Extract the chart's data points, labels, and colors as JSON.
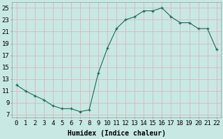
{
  "x": [
    0,
    1,
    2,
    3,
    4,
    5,
    6,
    7,
    8,
    9,
    10,
    11,
    12,
    13,
    14,
    15,
    16,
    17,
    18,
    19,
    20,
    21,
    22
  ],
  "y": [
    12,
    11,
    10.2,
    9.5,
    8.5,
    8.0,
    8.0,
    7.5,
    7.8,
    14.0,
    18.2,
    21.5,
    23.0,
    23.5,
    24.5,
    24.5,
    25.0,
    23.5,
    22.5,
    22.5,
    21.5,
    21.5,
    18.0
  ],
  "line_color": "#1a6b5a",
  "marker": "+",
  "marker_size": 3,
  "marker_color": "#1a6b5a",
  "bg_color": "#c8e8e4",
  "grid_color": "#d8b8b8",
  "xlabel": "Humidex (Indice chaleur)",
  "xlabel_fontsize": 7,
  "ylabel_ticks": [
    7,
    9,
    11,
    13,
    15,
    17,
    19,
    21,
    23,
    25
  ],
  "xlim": [
    -0.5,
    22.5
  ],
  "ylim": [
    6.5,
    26.0
  ],
  "xtick_labels": [
    "0",
    "1",
    "2",
    "3",
    "4",
    "5",
    "6",
    "7",
    "8",
    "9",
    "10",
    "11",
    "12",
    "13",
    "14",
    "15",
    "16",
    "17",
    "18",
    "19",
    "20",
    "21",
    "22"
  ],
  "tick_fontsize": 6.5
}
